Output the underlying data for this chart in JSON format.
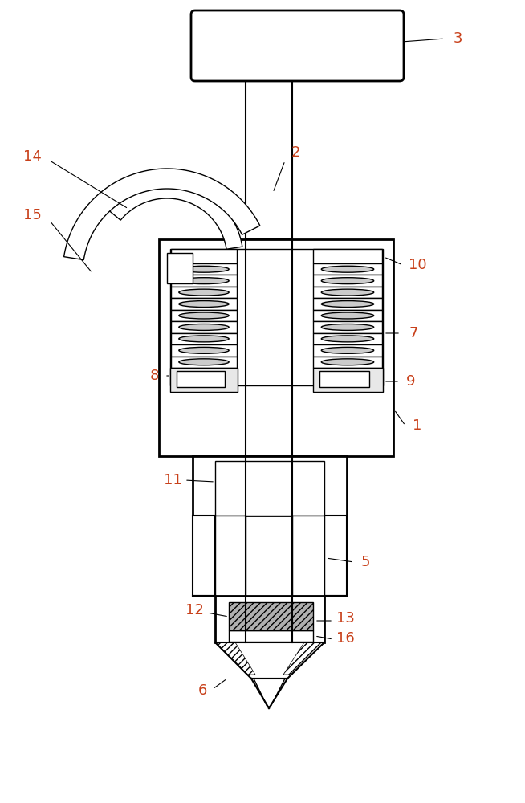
{
  "bg_color": "#ffffff",
  "line_color": "#000000",
  "label_color_red": "#c8401a",
  "figsize": [
    6.54,
    10.0
  ],
  "dpi": 100
}
